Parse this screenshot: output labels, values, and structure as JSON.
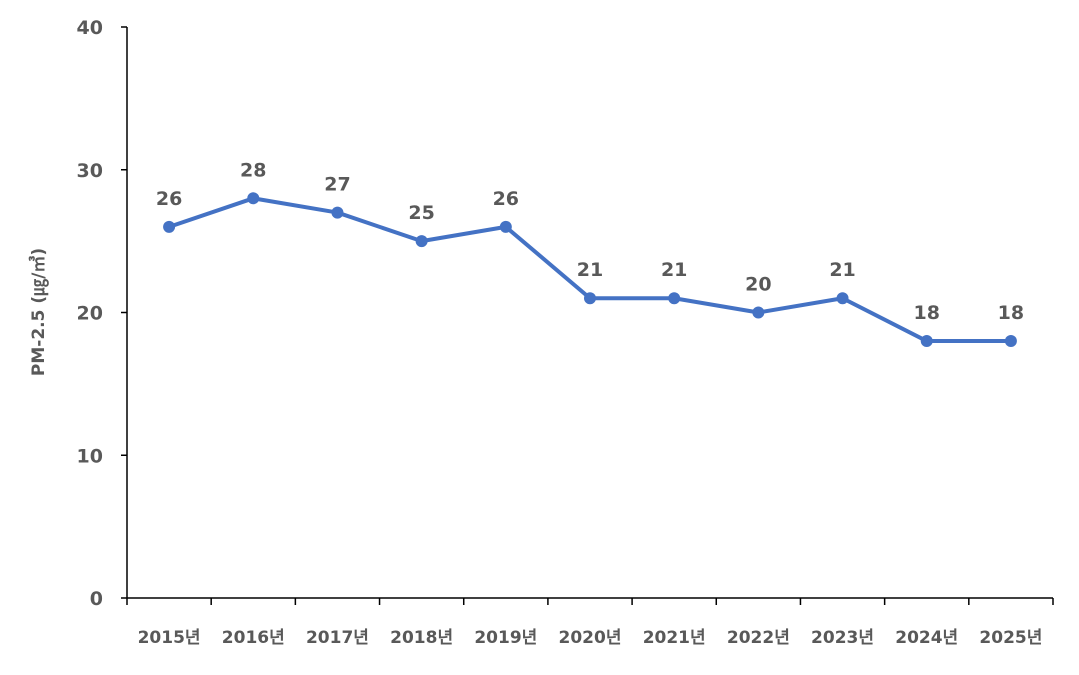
{
  "chart_data": {
    "type": "line",
    "title": "",
    "xlabel": "",
    "ylabel": "PM-2.5 (㎍/㎥)",
    "ylim": [
      0,
      40
    ],
    "yticks": [
      "0",
      "10",
      "20",
      "30",
      "40"
    ],
    "grid": false,
    "categories": [
      "2015년",
      "2016년",
      "2017년",
      "2018년",
      "2019년",
      "2020년",
      "2021년",
      "2022년",
      "2023년",
      "2024년",
      "2025년"
    ],
    "series": [
      {
        "values": [
          26,
          28,
          27,
          25,
          26,
          21,
          21,
          20,
          21,
          18,
          18
        ],
        "color": "#4472C4"
      }
    ],
    "data_labels": [
      "26",
      "28",
      "27",
      "25",
      "26",
      "21",
      "21",
      "20",
      "21",
      "18",
      "18"
    ]
  }
}
